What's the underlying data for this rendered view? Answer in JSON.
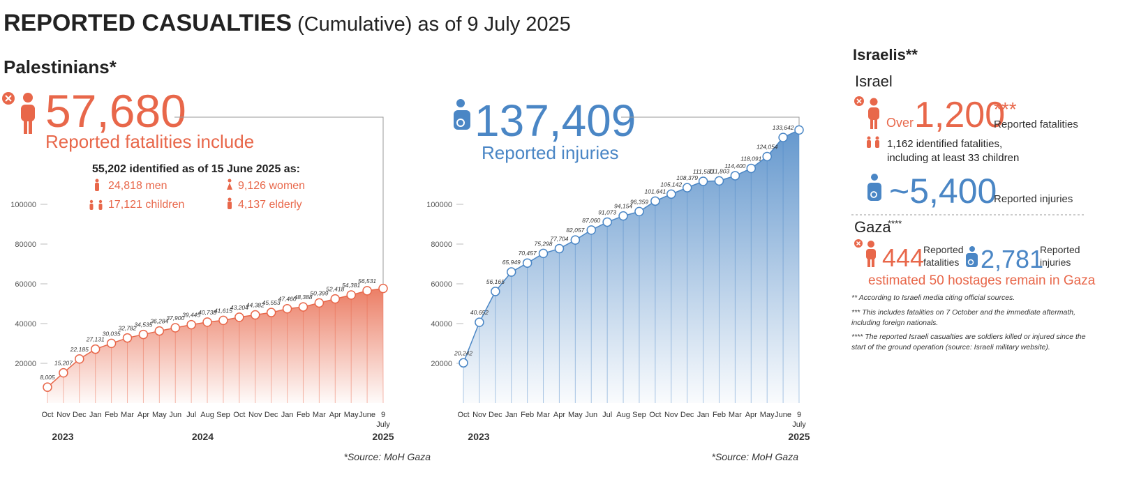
{
  "header": {
    "title": "REPORTED CASUALTIES",
    "subtitle": "(Cumulative) as of 9 July 2025"
  },
  "palestinians": {
    "heading": "Palestinians*",
    "fatalities": "57,680",
    "fatalities_label": "Reported fatalities include",
    "identified": "55,202 identified as of 15 June 2025 as:",
    "men": "24,818 men",
    "women": "9,126 women",
    "children": "17,121 children",
    "elderly": "4,137 elderly",
    "injuries": "137,409",
    "injuries_label": "Reported injuries",
    "source": "*Source: MoH Gaza"
  },
  "chart_data": [
    {
      "type": "area",
      "categories": [
        "Oct",
        "Nov",
        "Dec",
        "Jan",
        "Feb",
        "Mar",
        "Apr",
        "May",
        "Jun",
        "Jul",
        "Aug",
        "Sep",
        "Oct",
        "Nov",
        "Dec",
        "Jan",
        "Feb",
        "Mar",
        "Apr",
        "May",
        "June",
        "9"
      ],
      "last_sublabel": "July",
      "years": [
        "2023",
        "2024",
        "2025"
      ],
      "values": [
        8005,
        15207,
        22185,
        27131,
        30035,
        32782,
        34535,
        36284,
        37900,
        39445,
        40738,
        41615,
        43204,
        44382,
        45553,
        47460,
        48388,
        50399,
        52418,
        54381,
        56531,
        57680
      ],
      "value_labels": [
        "8,005",
        "15,207",
        "22,185",
        "27,131",
        "30,035",
        "32,782",
        "34,535",
        "36,284",
        "37,900",
        "39,445",
        "40,738",
        "41,615",
        "43,204",
        "44,382",
        "45,553",
        "47,460",
        "48,388",
        "50,399",
        "52,418",
        "54,381",
        "56,531",
        null
      ],
      "color": "#e8674a",
      "ylim": [
        0,
        105000
      ],
      "yticks": [
        20000,
        40000,
        60000,
        80000,
        100000
      ]
    },
    {
      "type": "area",
      "categories": [
        "Oct",
        "Nov",
        "Dec",
        "Jan",
        "Feb",
        "Mar",
        "Apr",
        "May",
        "Jun",
        "Jul",
        "Aug",
        "Sep",
        "Oct",
        "Nov",
        "Dec",
        "Jan",
        "Feb",
        "Mar",
        "Apr",
        "May",
        "June",
        "9"
      ],
      "last_sublabel": "July",
      "years": [
        "2023",
        "2025"
      ],
      "values": [
        20242,
        40652,
        56165,
        65949,
        70457,
        75298,
        77704,
        82057,
        87060,
        91073,
        94154,
        96359,
        101641,
        105142,
        108379,
        111580,
        111803,
        114400,
        118091,
        124054,
        133642,
        137409
      ],
      "value_labels": [
        "20,242",
        "40,652",
        "56,165",
        "65,949",
        "70,457",
        "75,298",
        "77,704",
        "82,057",
        "87,060",
        "91,073",
        "94,154",
        "96,359",
        "101,641",
        "105,142",
        "108,379",
        "111,580",
        "111,803",
        "114,400",
        "118,091",
        "124,054",
        "133,642",
        null
      ],
      "color": "#4a86c5",
      "ylim": [
        0,
        140000
      ],
      "yticks": [
        20000,
        40000,
        60000,
        80000,
        100000
      ]
    }
  ],
  "israelis": {
    "heading": "Israelis**",
    "israel": "Israel",
    "over": "Over",
    "fatalities": "1,200",
    "fatalities_mark": "***",
    "fatalities_label": "Reported fatalities",
    "identified": [
      "1,162 identified fatalities,",
      "including at least 33 children"
    ],
    "injuries": "~5,400",
    "injuries_label": "Reported injuries",
    "gaza": "Gaza",
    "gaza_mark": "****",
    "gaza_fatalities": "444",
    "gaza_fatalities_label": [
      "Reported",
      "fatalities"
    ],
    "gaza_injuries": "2,781",
    "gaza_injuries_label": [
      "Reported",
      "injuries"
    ],
    "hostages": "estimated 50 hostages remain in Gaza",
    "footnotes": [
      [
        "** According to Israeli media citing official sources."
      ],
      [
        "*** This includes fatalities on 7 October and the immediate aftermath,",
        "including foreign nationals."
      ],
      [
        "**** The reported Israeli casualties are soldiers killed or injured since the",
        "start of the ground operation (source: Israeli military website)."
      ]
    ]
  }
}
